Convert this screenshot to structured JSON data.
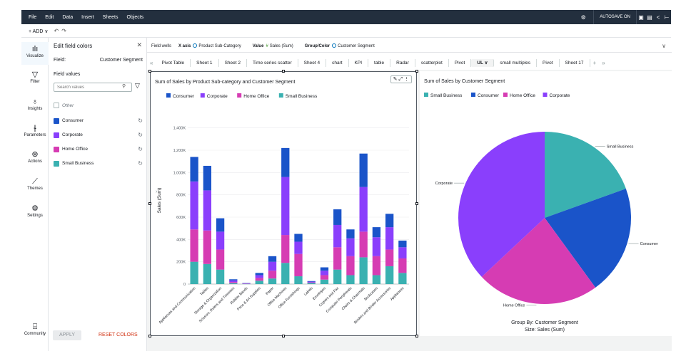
{
  "menu": {
    "items": [
      "File",
      "Edit",
      "Data",
      "Insert",
      "Sheets",
      "Objects"
    ],
    "autosave": "AUTOSAVE ON"
  },
  "toolbar": {
    "add": "+ ADD ∨"
  },
  "leftnav": [
    {
      "label": "Visualize",
      "icon": "chart-icon"
    },
    {
      "label": "Filter",
      "icon": "filter-icon"
    },
    {
      "label": "Insights",
      "icon": "lightbulb-icon"
    },
    {
      "label": "Parameters",
      "icon": "sliders-icon"
    },
    {
      "label": "Actions",
      "icon": "cursor-icon"
    },
    {
      "label": "Themes",
      "icon": "brush-icon"
    },
    {
      "label": "Settings",
      "icon": "gear-icon"
    },
    {
      "label": "Community",
      "icon": "chat-icon"
    }
  ],
  "panel": {
    "title": "Edit field colors",
    "field_label": "Field:",
    "field_value": "Customer Segment",
    "values_header": "Field values",
    "search_placeholder": "Search values",
    "other": "Other",
    "values": [
      {
        "label": "Consumer",
        "color": "#1a54c9"
      },
      {
        "label": "Corporate",
        "color": "#8a3ffc"
      },
      {
        "label": "Home Office",
        "color": "#d63cb3"
      },
      {
        "label": "Small Business",
        "color": "#3ab1b1"
      }
    ],
    "apply": "APPLY",
    "reset": "RESET COLORS"
  },
  "wells": {
    "label": "Field wells",
    "xaxis_label": "X axis",
    "xaxis_value": "Product Sub-Category",
    "value_label": "Value",
    "value_value": "Sales (Sum)",
    "group_label": "Group/Color",
    "group_value": "Customer Segment"
  },
  "sheets": [
    "Pivot Table",
    "Sheet 1",
    "Sheet 2",
    "Time series scatter",
    "Sheet 4",
    "chart",
    "KPI",
    "table",
    "Radar",
    "scatterplot",
    "Pivot",
    "UL ∨",
    "small multiples",
    "Pivot",
    "Sheet 17"
  ],
  "chart_data": [
    {
      "type": "bar",
      "title": "Sum of Sales by Product Sub-category and Customer Segment",
      "ylabel": "Sales (Sum)",
      "xlabel": "",
      "ylim": [
        0,
        1500000
      ],
      "yticks": [
        "0",
        "200K",
        "400K",
        "600K",
        "800K",
        "1,000K",
        "1,200K",
        "1,400K"
      ],
      "legend": "top",
      "stacked": true,
      "categories": [
        "Appliances and Communication",
        "Tables",
        "Storage & Organization",
        "Scissors, Rulers and Trimmers",
        "Rubber Bands",
        "Pens & Art Supplies",
        "Paper",
        "Office Machines",
        "Office Furnishings",
        "Labels",
        "Envelopes",
        "Copiers and Fax",
        "Computer Peripherals",
        "Chairs & Chairmats",
        "Bookcases",
        "Binders and Binder Accessories",
        "Appliances"
      ],
      "series": [
        {
          "name": "Consumer",
          "color": "#1a54c9",
          "values": [
            220000,
            220000,
            120000,
            10000,
            2000,
            20000,
            50000,
            260000,
            70000,
            5000,
            30000,
            140000,
            80000,
            300000,
            90000,
            120000,
            60000
          ]
        },
        {
          "name": "Corporate",
          "color": "#8a3ffc",
          "values": [
            430000,
            360000,
            160000,
            15000,
            3000,
            25000,
            80000,
            520000,
            110000,
            7000,
            40000,
            200000,
            160000,
            400000,
            170000,
            200000,
            100000
          ]
        },
        {
          "name": "Home Office",
          "color": "#d63cb3",
          "values": [
            290000,
            300000,
            180000,
            10000,
            2000,
            25000,
            70000,
            250000,
            200000,
            5000,
            40000,
            200000,
            170000,
            230000,
            170000,
            150000,
            130000
          ]
        },
        {
          "name": "Small Business",
          "color": "#3ab1b1",
          "values": [
            200000,
            180000,
            130000,
            8000,
            2000,
            30000,
            50000,
            190000,
            70000,
            10000,
            40000,
            130000,
            80000,
            240000,
            80000,
            160000,
            100000
          ]
        }
      ]
    },
    {
      "type": "pie",
      "title": "Sum of Sales by Customer Segment",
      "footer1": "Group By: Customer Segment",
      "footer2": "Size: Sales (Sum)",
      "legend": "top",
      "slices": [
        {
          "name": "Small Business",
          "color": "#3ab1b1",
          "value": 19.5
        },
        {
          "name": "Consumer",
          "color": "#1a54c9",
          "value": 20.5
        },
        {
          "name": "Home Office",
          "color": "#d63cb3",
          "value": 23.0
        },
        {
          "name": "Corporate",
          "color": "#8a3ffc",
          "value": 37.0
        }
      ]
    }
  ]
}
